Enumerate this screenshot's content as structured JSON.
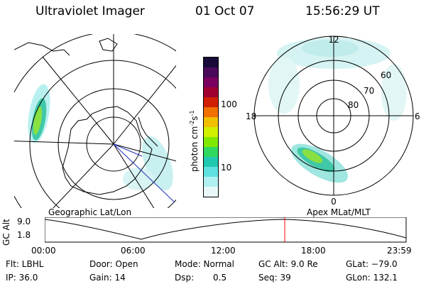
{
  "header": {
    "title": "Ultraviolet Imager",
    "date": "01 Oct 07",
    "time": "15:56:29 UT"
  },
  "geo_panel": {
    "label": "Geographic Lat/Lon"
  },
  "mag_panel": {
    "label": "Apex MLat/MLT",
    "mlt_labels": {
      "top": "12",
      "bottom": "0",
      "left": "18",
      "right": "6"
    },
    "mlat_labels": [
      "60",
      "70",
      "80"
    ]
  },
  "colorbar": {
    "unit_prefix": "photon cm",
    "unit_exp1": "-2",
    "unit_mid": "s",
    "unit_exp2": "-1",
    "ticks": [
      "100",
      "10"
    ],
    "colors": [
      "#1a0a3a",
      "#4a0a5a",
      "#7a0060",
      "#a00030",
      "#d02000",
      "#f07000",
      "#f0c000",
      "#d0f000",
      "#80e800",
      "#30d860",
      "#20c8b0",
      "#60e0e0",
      "#b0f0f0",
      "#e8f8f8"
    ]
  },
  "timeline": {
    "ylabel": "GC Alt",
    "yticks": [
      "9.0",
      "1.8"
    ],
    "xticks": [
      "00:00",
      "06:00",
      "12:00",
      "18:00",
      "23:59"
    ],
    "marker_hour": 15.94,
    "marker_color": "#ff0000"
  },
  "info": {
    "flt": "Flt: LBHL",
    "ip": "IP: 36.0",
    "door": "Door: Open",
    "gain": "Gain: 14",
    "mode": "Mode: Normal",
    "dsp_label": "Dsp:",
    "dsp_value": "0.5",
    "gc_alt": "GC Alt: 9.0 Re",
    "seq": "Seq: 39",
    "glat": "GLat: −79.0",
    "glon": "GLon: 132.1"
  }
}
